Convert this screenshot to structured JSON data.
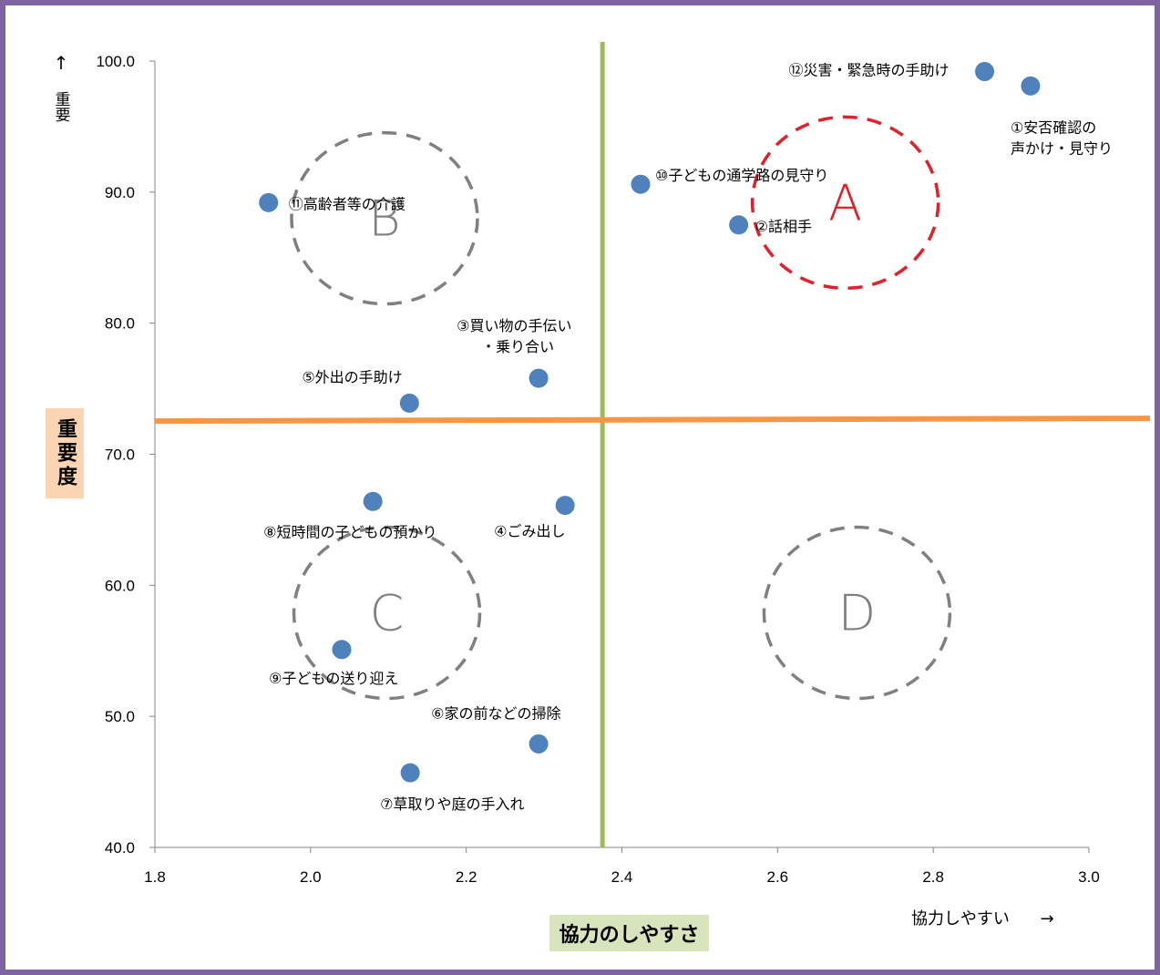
{
  "chart_data": {
    "type": "scatter",
    "xlabel": "協力のしやすさ",
    "ylabel": "重要度",
    "x_hint": "協力しやすい",
    "x_hint_arrow": "→",
    "y_hint": "重要",
    "y_hint_arrow": "↑",
    "xlim": [
      1.8,
      3.0
    ],
    "ylim": [
      40.0,
      100.0
    ],
    "x_ticks": [
      "1.8",
      "2.0",
      "2.2",
      "2.4",
      "2.6",
      "2.8",
      "3.0"
    ],
    "y_ticks": [
      "40.0",
      "50.0",
      "60.0",
      "70.0",
      "80.0",
      "90.0",
      "100.0"
    ],
    "grid": false,
    "divider_x": 2.375,
    "divider_y": 72.6,
    "divider_x_color": "#9bbb59",
    "divider_y_color": "#f79646",
    "point_color": "#4f81bd",
    "points": [
      {
        "label": "①安否確認の\n声かけ・見守り",
        "x": 2.925,
        "y": 98.1
      },
      {
        "label": "②話相手",
        "x": 2.55,
        "y": 87.5
      },
      {
        "label": "③買い物の手伝い\n・乗り合い",
        "x": 2.293,
        "y": 75.8
      },
      {
        "label": "④ごみ出し",
        "x": 2.327,
        "y": 66.1
      },
      {
        "label": "⑤外出の手助け",
        "x": 2.127,
        "y": 73.9
      },
      {
        "label": "⑥家の前などの掃除",
        "x": 2.293,
        "y": 47.9
      },
      {
        "label": "⑦草取りや庭の手入れ",
        "x": 2.128,
        "y": 45.7
      },
      {
        "label": "⑧短時間の子どもの預かり",
        "x": 2.08,
        "y": 66.4
      },
      {
        "label": "⑨子どもの送り迎え",
        "x": 2.04,
        "y": 55.1
      },
      {
        "label": "⑩子どもの通学路の見守り",
        "x": 2.424,
        "y": 90.6
      },
      {
        "label": "⑪高齢者等の介護",
        "x": 1.946,
        "y": 89.2
      },
      {
        "label": "⑫災害・緊急時の手助け",
        "x": 2.866,
        "y": 99.2
      }
    ],
    "regions": [
      {
        "label": "A",
        "cx": 2.687,
        "cy": 89.2,
        "color": "#e0202a"
      },
      {
        "label": "B",
        "cx": 2.095,
        "cy": 88.0,
        "color": "#808080"
      },
      {
        "label": "C",
        "cx": 2.098,
        "cy": 57.9,
        "color": "#808080"
      },
      {
        "label": "D",
        "cx": 2.702,
        "cy": 57.9,
        "color": "#808080"
      }
    ],
    "frame_color": "#8064a2",
    "ylabel_bg": "#fbd4b4",
    "xlabel_bg": "#d7e4bc"
  }
}
